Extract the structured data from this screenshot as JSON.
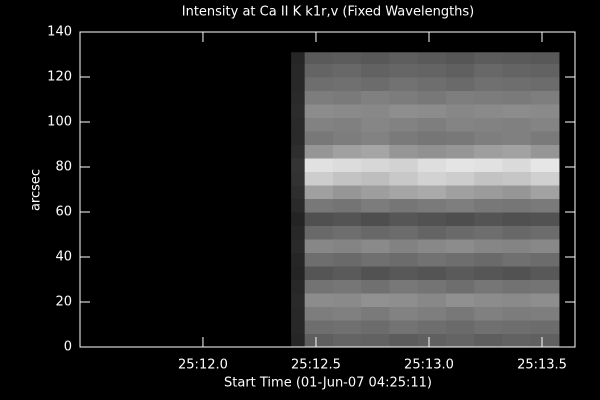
{
  "chart_data": {
    "type": "heatmap",
    "title": "Intensity at Ca II K k1r,v (Fixed Wavelengths)",
    "xlabel": "Start Time (01-Jun-07 04:25:11)",
    "ylabel": "arcsec",
    "xlim": [
      0.456,
      2.646
    ],
    "xticks": [
      {
        "value": 1.0,
        "label": "25:12.0"
      },
      {
        "value": 1.5,
        "label": "25:12.5"
      },
      {
        "value": 2.0,
        "label": "25:13.0"
      },
      {
        "value": 2.5,
        "label": "25:13.5"
      }
    ],
    "ylim": [
      0,
      140
    ],
    "yticks": [
      0,
      20,
      40,
      60,
      80,
      100,
      120,
      140
    ],
    "x_edges": [
      1.39,
      1.45,
      1.575,
      1.7,
      1.825,
      1.95,
      2.075,
      2.2,
      2.325,
      2.45,
      2.575
    ],
    "y_edges": [
      0,
      6,
      12,
      18,
      24,
      30,
      36,
      42,
      48,
      54,
      60,
      66,
      72,
      78,
      84,
      90,
      96,
      102,
      108,
      114,
      120,
      126,
      131
    ],
    "colormap": "gray",
    "z": [
      [
        38,
        95,
        100,
        98,
        92,
        96,
        100,
        94,
        98,
        96
      ],
      [
        40,
        110,
        112,
        108,
        115,
        110,
        106,
        112,
        110,
        108
      ],
      [
        40,
        125,
        128,
        122,
        130,
        126,
        120,
        128,
        124,
        126
      ],
      [
        42,
        140,
        138,
        145,
        142,
        136,
        144,
        140,
        138,
        142
      ],
      [
        40,
        115,
        118,
        112,
        120,
        116,
        110,
        118,
        114,
        116
      ],
      [
        36,
        85,
        90,
        82,
        88,
        84,
        90,
        86,
        82,
        88
      ],
      [
        38,
        110,
        106,
        112,
        108,
        114,
        110,
        106,
        112,
        108
      ],
      [
        42,
        135,
        132,
        138,
        130,
        136,
        140,
        134,
        132,
        136
      ],
      [
        40,
        105,
        110,
        104,
        108,
        100,
        106,
        110,
        104,
        108
      ],
      [
        36,
        80,
        84,
        78,
        86,
        82,
        78,
        84,
        80,
        82
      ],
      [
        42,
        120,
        116,
        124,
        118,
        122,
        126,
        120,
        118,
        122
      ],
      [
        46,
        160,
        150,
        158,
        165,
        170,
        160,
        155,
        150,
        162
      ],
      [
        50,
        205,
        195,
        190,
        200,
        210,
        205,
        195,
        198,
        208
      ],
      [
        52,
        225,
        220,
        215,
        210,
        222,
        228,
        225,
        218,
        230
      ],
      [
        46,
        150,
        160,
        165,
        150,
        145,
        150,
        158,
        162,
        150
      ],
      [
        42,
        120,
        125,
        130,
        122,
        118,
        120,
        126,
        128,
        122
      ],
      [
        42,
        130,
        128,
        134,
        130,
        126,
        132,
        130,
        128,
        132
      ],
      [
        44,
        140,
        138,
        136,
        142,
        140,
        135,
        138,
        140,
        138
      ],
      [
        42,
        125,
        122,
        128,
        124,
        120,
        126,
        124,
        122,
        126
      ],
      [
        40,
        110,
        112,
        108,
        114,
        110,
        106,
        112,
        110,
        108
      ],
      [
        40,
        100,
        104,
        98,
        102,
        100,
        96,
        104,
        100,
        98
      ],
      [
        38,
        90,
        92,
        88,
        94,
        90,
        86,
        92,
        90,
        88
      ]
    ]
  }
}
